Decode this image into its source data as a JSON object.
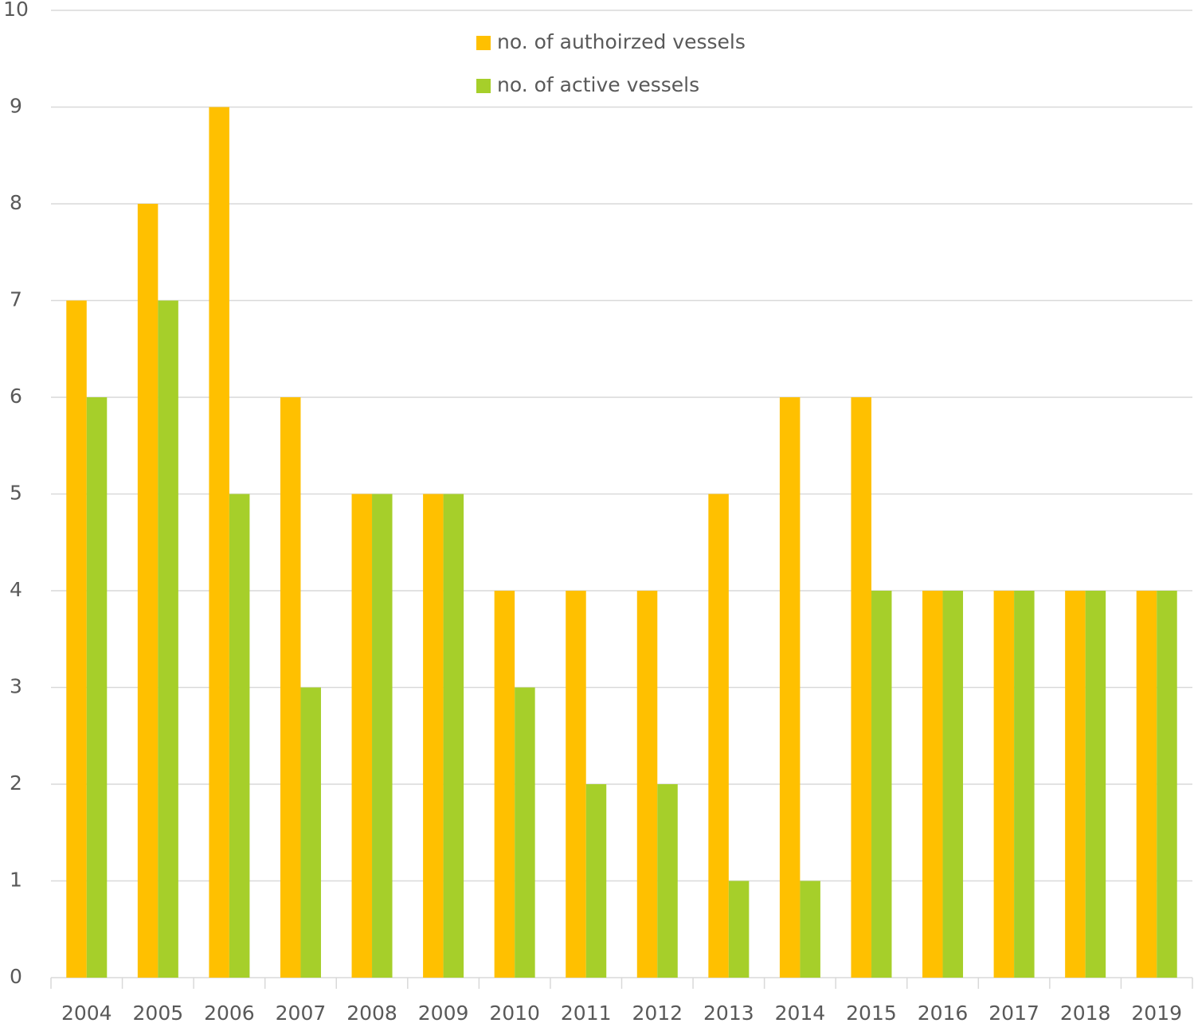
{
  "chart_data": {
    "type": "bar",
    "categories": [
      "2004",
      "2005",
      "2006",
      "2007",
      "2008",
      "2009",
      "2010",
      "2011",
      "2012",
      "2013",
      "2014",
      "2015",
      "2016",
      "2017",
      "2018",
      "2019"
    ],
    "series": [
      {
        "name": "no. of authoirzed vessels",
        "color": "#ffc000",
        "values": [
          7,
          8,
          9,
          6,
          5,
          5,
          4,
          4,
          4,
          5,
          6,
          6,
          4,
          4,
          4,
          4
        ]
      },
      {
        "name": "no. of active vessels",
        "color": "#a6cf2a",
        "values": [
          6,
          7,
          5,
          3,
          5,
          5,
          3,
          2,
          2,
          1,
          1,
          4,
          4,
          4,
          4,
          4
        ]
      }
    ],
    "ylim": [
      0,
      10
    ],
    "yticks": [
      0,
      1,
      2,
      3,
      4,
      5,
      6,
      7,
      8,
      9,
      10
    ],
    "grid": true,
    "legend": "top"
  }
}
